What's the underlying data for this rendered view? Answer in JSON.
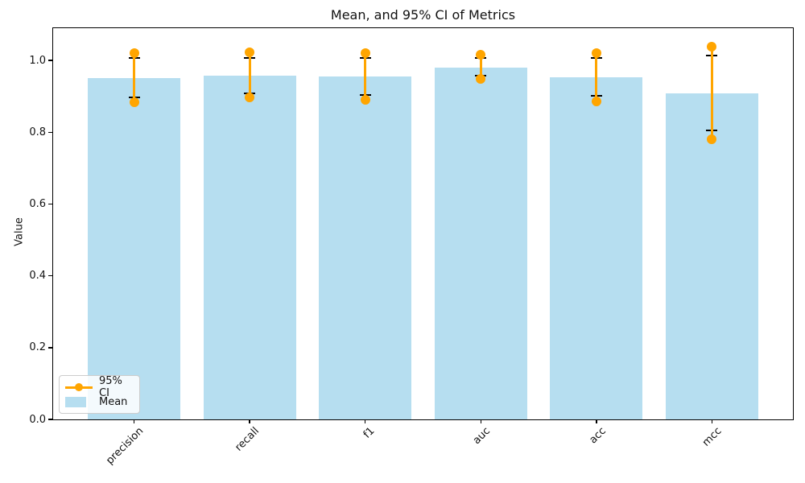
{
  "chart_data": {
    "type": "bar",
    "title": "Mean, and 95% CI of Metrics",
    "xlabel": "",
    "ylabel": "Value",
    "categories": [
      "precision",
      "recall",
      "f1",
      "auc",
      "acc",
      "mcc"
    ],
    "series": [
      {
        "name": "Mean",
        "type": "bar",
        "values": [
          0.95,
          0.958,
          0.955,
          0.98,
          0.953,
          0.909
        ]
      },
      {
        "name": "95% CI",
        "type": "interval-dotline",
        "low": [
          0.883,
          0.897,
          0.891,
          0.948,
          0.886,
          0.78
        ],
        "high": [
          1.021,
          1.022,
          1.021,
          1.017,
          1.02,
          1.039
        ]
      },
      {
        "name": "error-caps",
        "type": "interval-capped",
        "low": [
          0.897,
          0.909,
          0.903,
          0.958,
          0.902,
          0.805
        ],
        "high": [
          1.006,
          1.007,
          1.007,
          1.007,
          1.006,
          1.013
        ]
      }
    ],
    "yticks": [
      0.0,
      0.2,
      0.4,
      0.6,
      0.8,
      1.0
    ],
    "ylim": [
      0,
      1.09
    ],
    "xlim": [
      -0.7,
      5.7
    ],
    "bar_width": 0.8,
    "xtick_rotation": 45,
    "grid": false,
    "legend": {
      "position": "lower left",
      "items": [
        "95% CI",
        "Mean"
      ]
    },
    "colors": {
      "bar": "#b6def0",
      "ci": "#ffa500",
      "error": "#000000"
    }
  }
}
